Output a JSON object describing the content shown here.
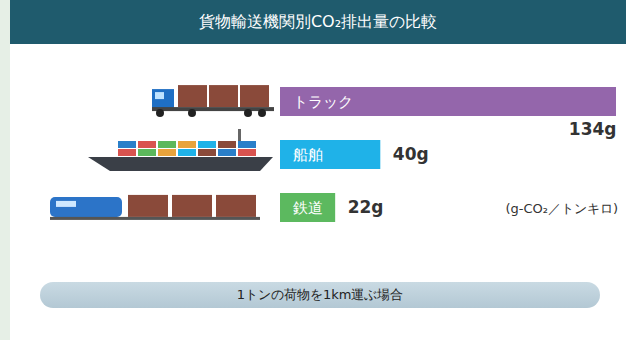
{
  "chart_data": {
    "type": "bar",
    "orientation": "horizontal",
    "title": "貨物輸送機関別CO₂排出量の比較",
    "categories": [
      "トラック",
      "船舶",
      "鉄道"
    ],
    "values": [
      134,
      40,
      22
    ],
    "value_labels": [
      "134g",
      "40g",
      "22g"
    ],
    "colors": [
      "#9466ab",
      "#1fb2e8",
      "#5cb95f"
    ],
    "xlim": [
      0,
      134
    ],
    "unit": "(g-CO₂／トンキロ)",
    "caption": "1トンの荷物を1km運ぶ場合",
    "data_labels": true,
    "tick_labels": false,
    "grid": false
  }
}
